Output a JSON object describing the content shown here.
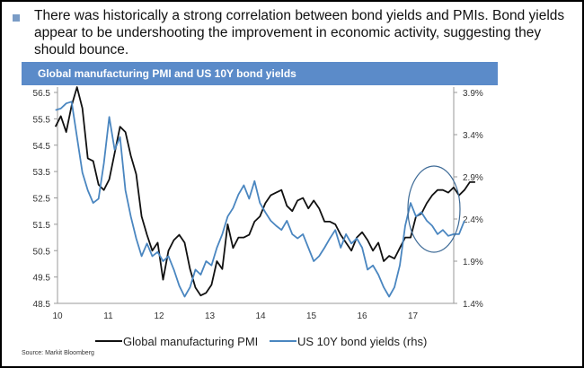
{
  "intro_text": "There was historically a strong correlation between bond yields and PMIs. Bond yields appear to be undershooting the improvement in economic activity, suggesting they should bounce.",
  "source": "Source: Markit Bloomberg",
  "chart_data": {
    "type": "line",
    "title": "Global manufacturing PMI and US 10Y bond yields",
    "xlabel": "",
    "ylabel": "",
    "x_ticks": [
      "10",
      "11",
      "12",
      "13",
      "14",
      "15",
      "16",
      "17"
    ],
    "xlim": [
      10,
      17.8
    ],
    "ylim_left": [
      48.5,
      56.5
    ],
    "ylim_right": [
      1.4,
      3.9
    ],
    "y_ticks_left": [
      "48.5",
      "49.5",
      "50.5",
      "51.5",
      "52.5",
      "53.5",
      "54.5",
      "55.5",
      "56.5"
    ],
    "y_ticks_right": [
      "1.4%",
      "1.9%",
      "2.4%",
      "2.9%",
      "3.4%",
      "3.9%"
    ],
    "grid": false,
    "legend_position": "bottom",
    "annotation": "ellipse highlighting 2017 divergence",
    "colors": {
      "pmi": "#111111",
      "yield": "#4a86c0",
      "title_bar": "#5b8bc9",
      "ellipse": "#3d6a96"
    },
    "series": [
      {
        "name": "Global manufacturing PMI",
        "axis": "left",
        "x_start": 9.96,
        "x_step": 0.106,
        "values": [
          55.2,
          55.6,
          55.0,
          56.0,
          56.7,
          55.9,
          54.0,
          53.9,
          53.0,
          52.8,
          53.2,
          54.2,
          55.2,
          55.0,
          54.1,
          53.4,
          51.8,
          51.1,
          50.5,
          50.8,
          49.4,
          50.5,
          50.9,
          51.1,
          50.8,
          49.8,
          49.1,
          48.8,
          48.9,
          49.2,
          50.1,
          49.8,
          51.5,
          50.6,
          51.0,
          51.0,
          51.1,
          51.6,
          51.8,
          52.3,
          52.6,
          52.7,
          52.8,
          52.2,
          52.0,
          52.4,
          52.5,
          52.1,
          52.4,
          52.1,
          51.6,
          51.6,
          51.5,
          51.1,
          50.8,
          50.5,
          51.0,
          51.2,
          50.9,
          50.5,
          50.8,
          50.1,
          50.3,
          50.2,
          50.6,
          51.0,
          51.0,
          51.8,
          51.9,
          52.3,
          52.6,
          52.8,
          52.8,
          52.7,
          52.9,
          52.6,
          52.8,
          53.1,
          53.1
        ]
      },
      {
        "name": "US 10Y bond yields (rhs)",
        "axis": "right",
        "x_start": 9.96,
        "x_step": 0.106,
        "values": [
          3.69,
          3.71,
          3.77,
          3.79,
          3.37,
          2.95,
          2.74,
          2.59,
          2.64,
          3.06,
          3.61,
          3.22,
          3.37,
          2.74,
          2.43,
          2.17,
          1.96,
          2.11,
          1.96,
          2.01,
          1.9,
          1.96,
          1.8,
          1.61,
          1.48,
          1.59,
          1.8,
          1.74,
          1.9,
          1.85,
          2.06,
          2.22,
          2.43,
          2.53,
          2.69,
          2.8,
          2.64,
          2.85,
          2.59,
          2.48,
          2.38,
          2.32,
          2.27,
          2.38,
          2.22,
          2.17,
          2.22,
          2.06,
          1.9,
          1.96,
          2.06,
          2.17,
          2.27,
          2.06,
          2.22,
          2.11,
          2.17,
          2.06,
          1.8,
          1.85,
          1.74,
          1.59,
          1.48,
          1.59,
          1.85,
          2.32,
          2.59,
          2.43,
          2.48,
          2.38,
          2.32,
          2.22,
          2.27,
          2.2,
          2.22,
          2.22,
          2.38
        ]
      }
    ]
  }
}
